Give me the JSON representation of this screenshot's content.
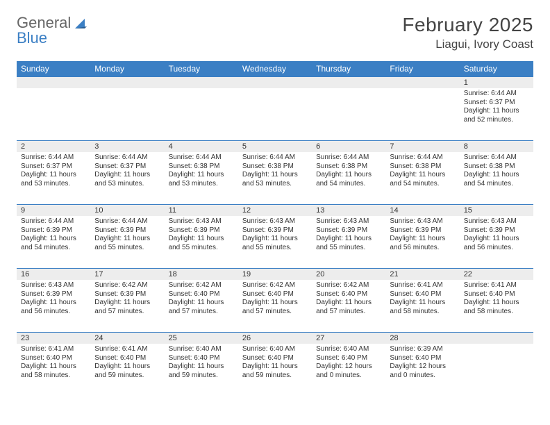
{
  "logo": {
    "text1": "General",
    "text2": "Blue"
  },
  "title": "February 2025",
  "location": "Liagui, Ivory Coast",
  "colors": {
    "header_bg": "#3b7fc4",
    "header_text": "#ffffff",
    "daynum_bg": "#ededed",
    "border": "#3b7fc4",
    "body_text": "#333333",
    "background": "#ffffff"
  },
  "day_headers": [
    "Sunday",
    "Monday",
    "Tuesday",
    "Wednesday",
    "Thursday",
    "Friday",
    "Saturday"
  ],
  "weeks": [
    [
      {
        "n": "",
        "sunrise": "",
        "sunset": "",
        "daylight": ""
      },
      {
        "n": "",
        "sunrise": "",
        "sunset": "",
        "daylight": ""
      },
      {
        "n": "",
        "sunrise": "",
        "sunset": "",
        "daylight": ""
      },
      {
        "n": "",
        "sunrise": "",
        "sunset": "",
        "daylight": ""
      },
      {
        "n": "",
        "sunrise": "",
        "sunset": "",
        "daylight": ""
      },
      {
        "n": "",
        "sunrise": "",
        "sunset": "",
        "daylight": ""
      },
      {
        "n": "1",
        "sunrise": "Sunrise: 6:44 AM",
        "sunset": "Sunset: 6:37 PM",
        "daylight": "Daylight: 11 hours and 52 minutes."
      }
    ],
    [
      {
        "n": "2",
        "sunrise": "Sunrise: 6:44 AM",
        "sunset": "Sunset: 6:37 PM",
        "daylight": "Daylight: 11 hours and 53 minutes."
      },
      {
        "n": "3",
        "sunrise": "Sunrise: 6:44 AM",
        "sunset": "Sunset: 6:37 PM",
        "daylight": "Daylight: 11 hours and 53 minutes."
      },
      {
        "n": "4",
        "sunrise": "Sunrise: 6:44 AM",
        "sunset": "Sunset: 6:38 PM",
        "daylight": "Daylight: 11 hours and 53 minutes."
      },
      {
        "n": "5",
        "sunrise": "Sunrise: 6:44 AM",
        "sunset": "Sunset: 6:38 PM",
        "daylight": "Daylight: 11 hours and 53 minutes."
      },
      {
        "n": "6",
        "sunrise": "Sunrise: 6:44 AM",
        "sunset": "Sunset: 6:38 PM",
        "daylight": "Daylight: 11 hours and 54 minutes."
      },
      {
        "n": "7",
        "sunrise": "Sunrise: 6:44 AM",
        "sunset": "Sunset: 6:38 PM",
        "daylight": "Daylight: 11 hours and 54 minutes."
      },
      {
        "n": "8",
        "sunrise": "Sunrise: 6:44 AM",
        "sunset": "Sunset: 6:38 PM",
        "daylight": "Daylight: 11 hours and 54 minutes."
      }
    ],
    [
      {
        "n": "9",
        "sunrise": "Sunrise: 6:44 AM",
        "sunset": "Sunset: 6:39 PM",
        "daylight": "Daylight: 11 hours and 54 minutes."
      },
      {
        "n": "10",
        "sunrise": "Sunrise: 6:44 AM",
        "sunset": "Sunset: 6:39 PM",
        "daylight": "Daylight: 11 hours and 55 minutes."
      },
      {
        "n": "11",
        "sunrise": "Sunrise: 6:43 AM",
        "sunset": "Sunset: 6:39 PM",
        "daylight": "Daylight: 11 hours and 55 minutes."
      },
      {
        "n": "12",
        "sunrise": "Sunrise: 6:43 AM",
        "sunset": "Sunset: 6:39 PM",
        "daylight": "Daylight: 11 hours and 55 minutes."
      },
      {
        "n": "13",
        "sunrise": "Sunrise: 6:43 AM",
        "sunset": "Sunset: 6:39 PM",
        "daylight": "Daylight: 11 hours and 55 minutes."
      },
      {
        "n": "14",
        "sunrise": "Sunrise: 6:43 AM",
        "sunset": "Sunset: 6:39 PM",
        "daylight": "Daylight: 11 hours and 56 minutes."
      },
      {
        "n": "15",
        "sunrise": "Sunrise: 6:43 AM",
        "sunset": "Sunset: 6:39 PM",
        "daylight": "Daylight: 11 hours and 56 minutes."
      }
    ],
    [
      {
        "n": "16",
        "sunrise": "Sunrise: 6:43 AM",
        "sunset": "Sunset: 6:39 PM",
        "daylight": "Daylight: 11 hours and 56 minutes."
      },
      {
        "n": "17",
        "sunrise": "Sunrise: 6:42 AM",
        "sunset": "Sunset: 6:39 PM",
        "daylight": "Daylight: 11 hours and 57 minutes."
      },
      {
        "n": "18",
        "sunrise": "Sunrise: 6:42 AM",
        "sunset": "Sunset: 6:40 PM",
        "daylight": "Daylight: 11 hours and 57 minutes."
      },
      {
        "n": "19",
        "sunrise": "Sunrise: 6:42 AM",
        "sunset": "Sunset: 6:40 PM",
        "daylight": "Daylight: 11 hours and 57 minutes."
      },
      {
        "n": "20",
        "sunrise": "Sunrise: 6:42 AM",
        "sunset": "Sunset: 6:40 PM",
        "daylight": "Daylight: 11 hours and 57 minutes."
      },
      {
        "n": "21",
        "sunrise": "Sunrise: 6:41 AM",
        "sunset": "Sunset: 6:40 PM",
        "daylight": "Daylight: 11 hours and 58 minutes."
      },
      {
        "n": "22",
        "sunrise": "Sunrise: 6:41 AM",
        "sunset": "Sunset: 6:40 PM",
        "daylight": "Daylight: 11 hours and 58 minutes."
      }
    ],
    [
      {
        "n": "23",
        "sunrise": "Sunrise: 6:41 AM",
        "sunset": "Sunset: 6:40 PM",
        "daylight": "Daylight: 11 hours and 58 minutes."
      },
      {
        "n": "24",
        "sunrise": "Sunrise: 6:41 AM",
        "sunset": "Sunset: 6:40 PM",
        "daylight": "Daylight: 11 hours and 59 minutes."
      },
      {
        "n": "25",
        "sunrise": "Sunrise: 6:40 AM",
        "sunset": "Sunset: 6:40 PM",
        "daylight": "Daylight: 11 hours and 59 minutes."
      },
      {
        "n": "26",
        "sunrise": "Sunrise: 6:40 AM",
        "sunset": "Sunset: 6:40 PM",
        "daylight": "Daylight: 11 hours and 59 minutes."
      },
      {
        "n": "27",
        "sunrise": "Sunrise: 6:40 AM",
        "sunset": "Sunset: 6:40 PM",
        "daylight": "Daylight: 12 hours and 0 minutes."
      },
      {
        "n": "28",
        "sunrise": "Sunrise: 6:39 AM",
        "sunset": "Sunset: 6:40 PM",
        "daylight": "Daylight: 12 hours and 0 minutes."
      },
      {
        "n": "",
        "sunrise": "",
        "sunset": "",
        "daylight": ""
      }
    ]
  ]
}
